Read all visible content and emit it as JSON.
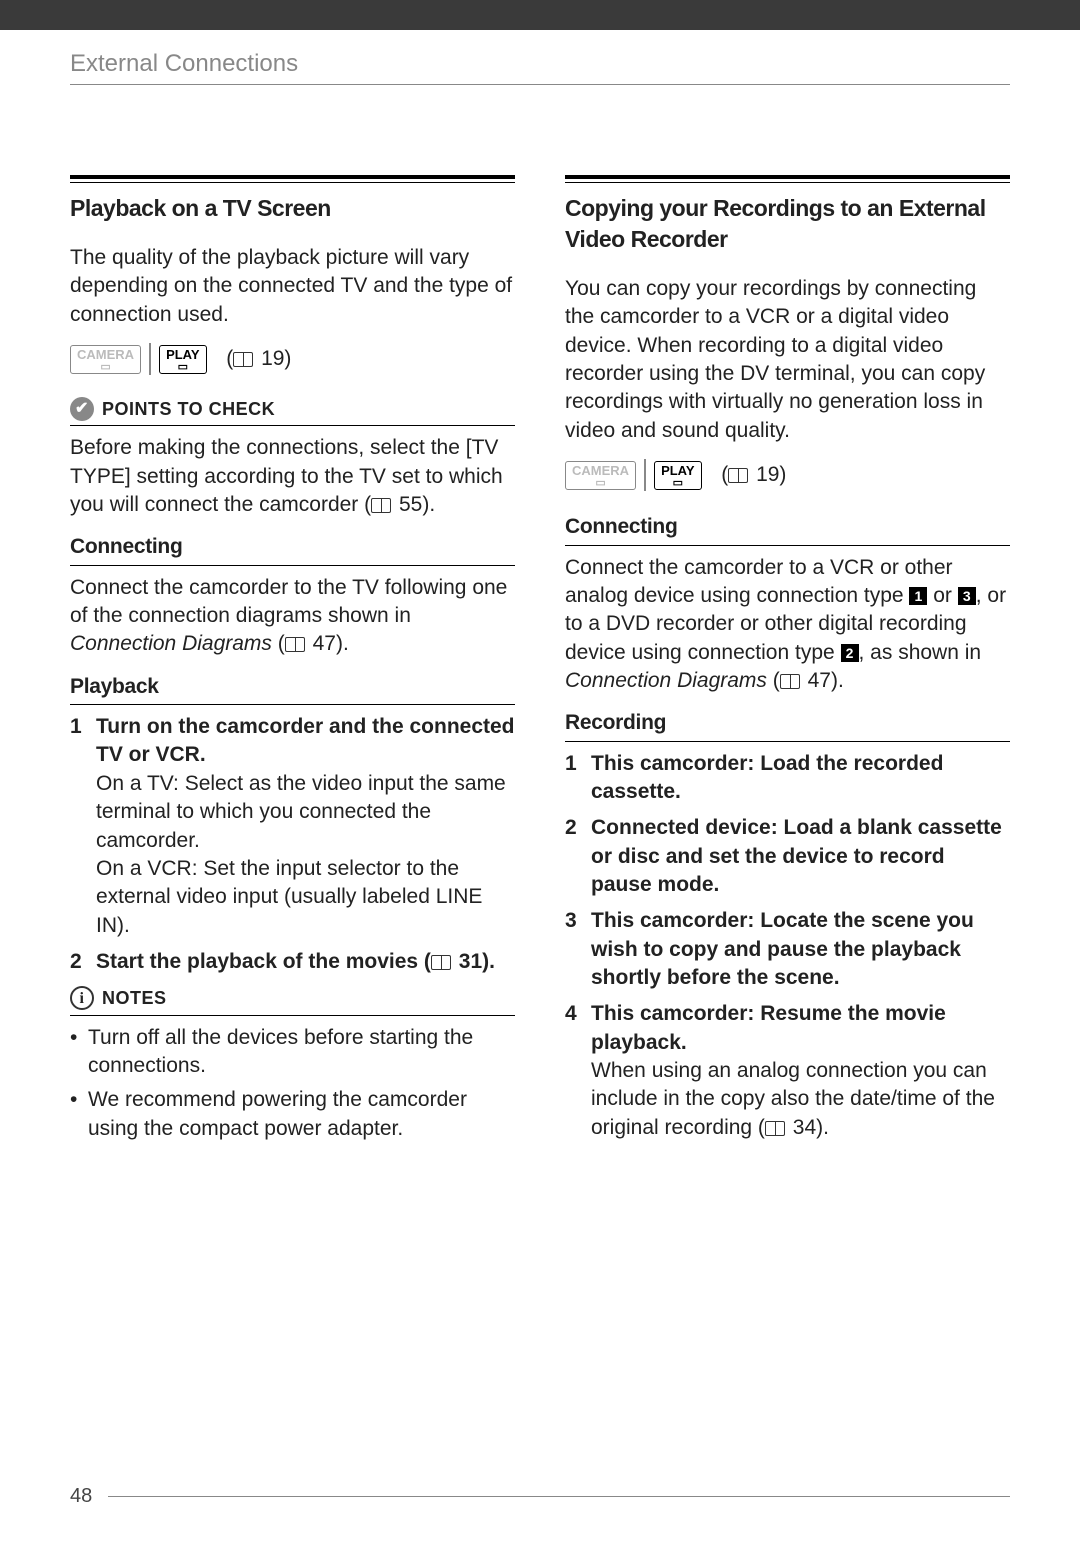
{
  "header": {
    "title": "External Connections"
  },
  "page_number": "48",
  "left": {
    "section_title": "Playback on a TV Screen",
    "intro": "The quality of the playback picture will vary depending on the connected TV and the type of connection used.",
    "mode": {
      "camera": "CAMERA",
      "play": "PLAY",
      "ref": "19"
    },
    "points_label": "POINTS TO CHECK",
    "points_body_a": "Before making the connections, select the [TV TYPE] setting according to the TV set to which you will connect the camcorder (",
    "points_body_ref": "55",
    "points_body_b": ").",
    "connecting_label": "Connecting",
    "connecting_body_a": "Connect the camcorder to the TV following one of the connection diagrams shown in ",
    "connecting_body_italic": "Connection Diagrams",
    "connecting_body_b": " (",
    "connecting_body_ref": "47",
    "connecting_body_c": ").",
    "playback_label": "Playback",
    "step1_bold": "Turn on the camcorder and the connected TV or VCR.",
    "step1_body": "On a TV: Select as the video input the same terminal to which you connected the camcorder.\nOn a VCR: Set the input selector to the external video input (usually labeled LINE IN).",
    "step2_bold_a": "Start the playback of the movies (",
    "step2_ref": "31",
    "step2_bold_b": ").",
    "notes_label": "NOTES",
    "note1": "Turn off all the devices before starting the connections.",
    "note2": "We recommend powering the camcorder using the compact power adapter."
  },
  "right": {
    "section_title": "Copying your Recordings to an External Video Recorder",
    "intro": "You can copy your recordings by connecting the camcorder to a VCR or a digital video device. When recording to a digital video recorder using the DV terminal, you can copy recordings with virtually no generation loss in video and sound quality.",
    "mode": {
      "camera": "CAMERA",
      "play": "PLAY",
      "ref": "19"
    },
    "connecting_label": "Connecting",
    "connecting_a": "Connect the camcorder to a VCR or other analog device using connection type ",
    "connecting_b": " or ",
    "connecting_c": ", or to a DVD recorder or other digital recording device using connection type ",
    "connecting_d": ", as shown in ",
    "connecting_italic": "Connection Diagrams",
    "connecting_e": " (",
    "connecting_ref": "47",
    "connecting_f": ").",
    "recording_label": "Recording",
    "r1": "This camcorder: Load the recorded cassette.",
    "r2": "Connected device: Load a blank cassette or disc and set the device to record pause mode.",
    "r3": "This camcorder: Locate the scene you wish to copy and pause the playback shortly before the scene.",
    "r4_bold": "This camcorder: Resume the movie playback.",
    "r4_body_a": "When using an analog connection you can include in the copy also the date/time of the original recording (",
    "r4_ref": "34",
    "r4_body_b": ")."
  },
  "nums": {
    "n1": "1",
    "n2": "2",
    "n3": "3",
    "n4": "4"
  },
  "colors": {
    "topbar": "#3a3a3a",
    "text": "#222222",
    "muted": "#888888"
  }
}
